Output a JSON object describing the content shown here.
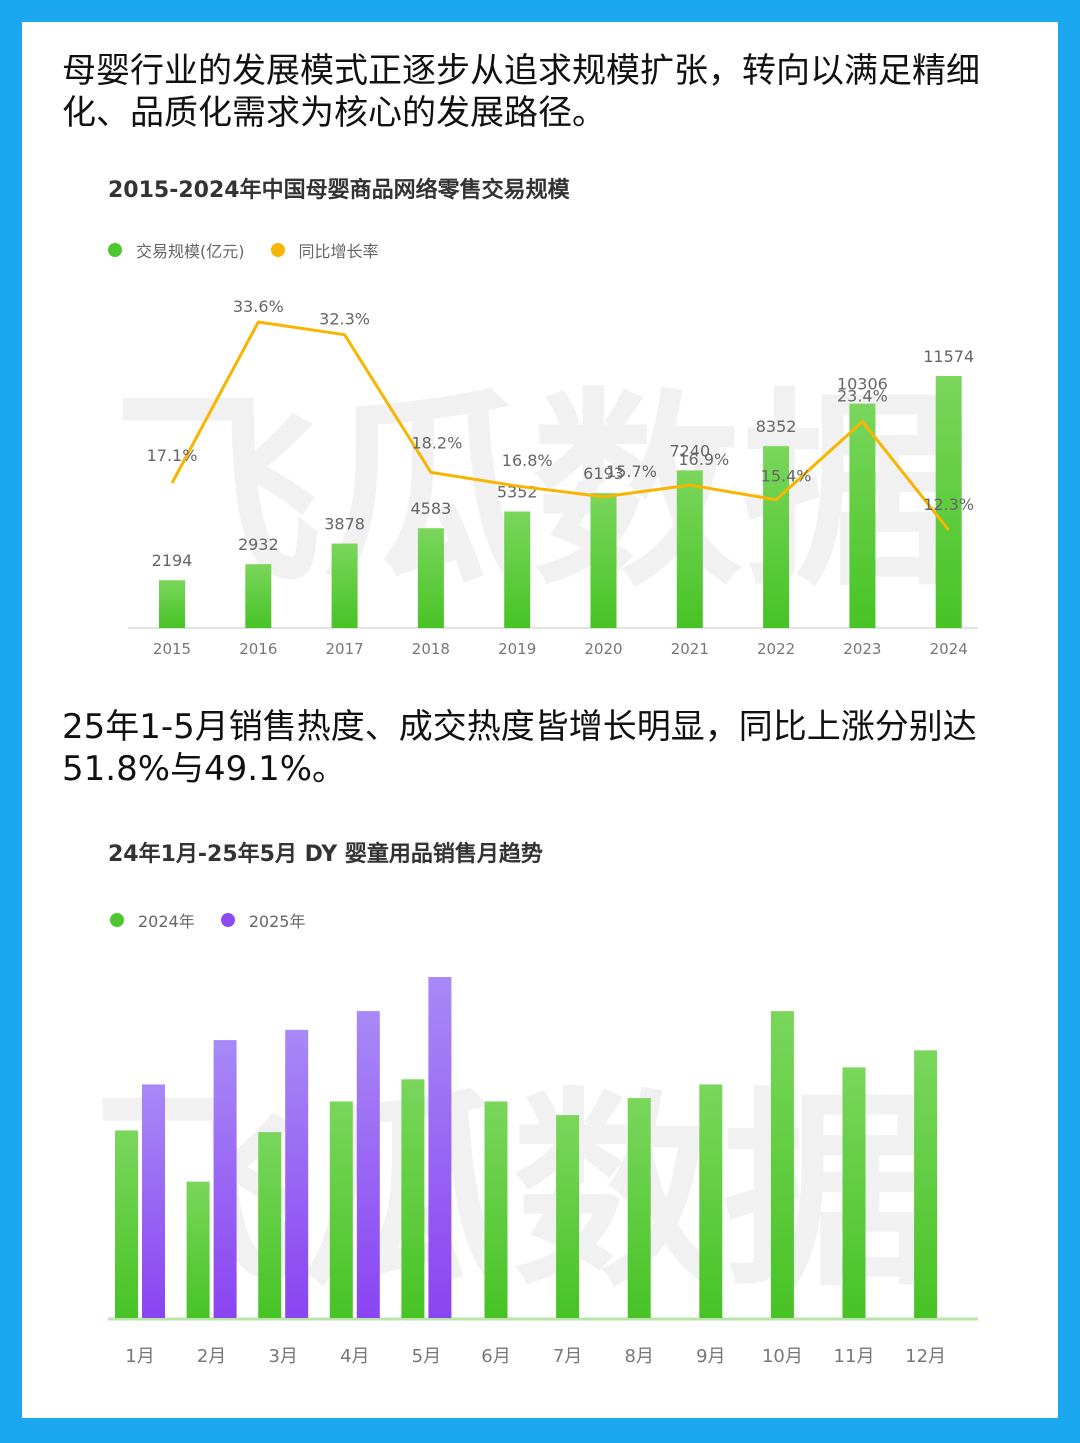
{
  "headline1": "母婴行业的发展模式正逐步从追求规模扩张，转向以满足精细化、品质化需求为核心的发展路径。",
  "headline2": "25年1-5月销售热度、成交热度皆增长明显，同比上涨分别达51.8%与49.1%。",
  "watermark": "飞瓜数据",
  "colors": {
    "green": "#4cc72e",
    "greenTop": "#78d45a",
    "orange": "#f7b500",
    "purple": "#8d4cf3",
    "purpleTop": "#a98af5"
  },
  "chart1_legend": {
    "bar": "交易规模(亿元)",
    "line": "同比增长率"
  },
  "chart2_legend": {
    "a": "2024年",
    "b": "2025年"
  },
  "chart_data": [
    {
      "type": "bar",
      "title": "2015-2024年中国母婴商品网络零售交易规模",
      "categories": [
        "2015",
        "2016",
        "2017",
        "2018",
        "2019",
        "2020",
        "2021",
        "2022",
        "2023",
        "2024"
      ],
      "series": [
        {
          "name": "交易规模(亿元)",
          "type": "bar",
          "values": [
            2194,
            2932,
            3878,
            4583,
            5352,
            6193,
            7240,
            8352,
            10306,
            11574
          ]
        },
        {
          "name": "同比增长率",
          "type": "line",
          "unit": "%",
          "values": [
            17.1,
            33.6,
            32.3,
            18.2,
            16.8,
            15.7,
            16.9,
            15.4,
            23.4,
            12.3
          ]
        }
      ],
      "legend_position": "top-left",
      "grid": false
    },
    {
      "type": "bar",
      "title": "24年1月-25年5月 DY 婴童用品销售月趋势",
      "categories": [
        "1月",
        "2月",
        "3月",
        "4月",
        "5月",
        "6月",
        "7月",
        "8月",
        "9月",
        "10月",
        "11月",
        "12月"
      ],
      "series": [
        {
          "name": "2024年",
          "values": [
            55,
            40,
            54.5,
            63.5,
            70,
            63.5,
            59.5,
            64.5,
            68.5,
            90,
            73.5,
            78.5
          ]
        },
        {
          "name": "2025年",
          "values": [
            68.5,
            81.5,
            84.5,
            90,
            100,
            null,
            null,
            null,
            null,
            null,
            null,
            null
          ]
        }
      ],
      "ylim": [
        0,
        100
      ],
      "legend_position": "top-left",
      "grid": false
    }
  ]
}
